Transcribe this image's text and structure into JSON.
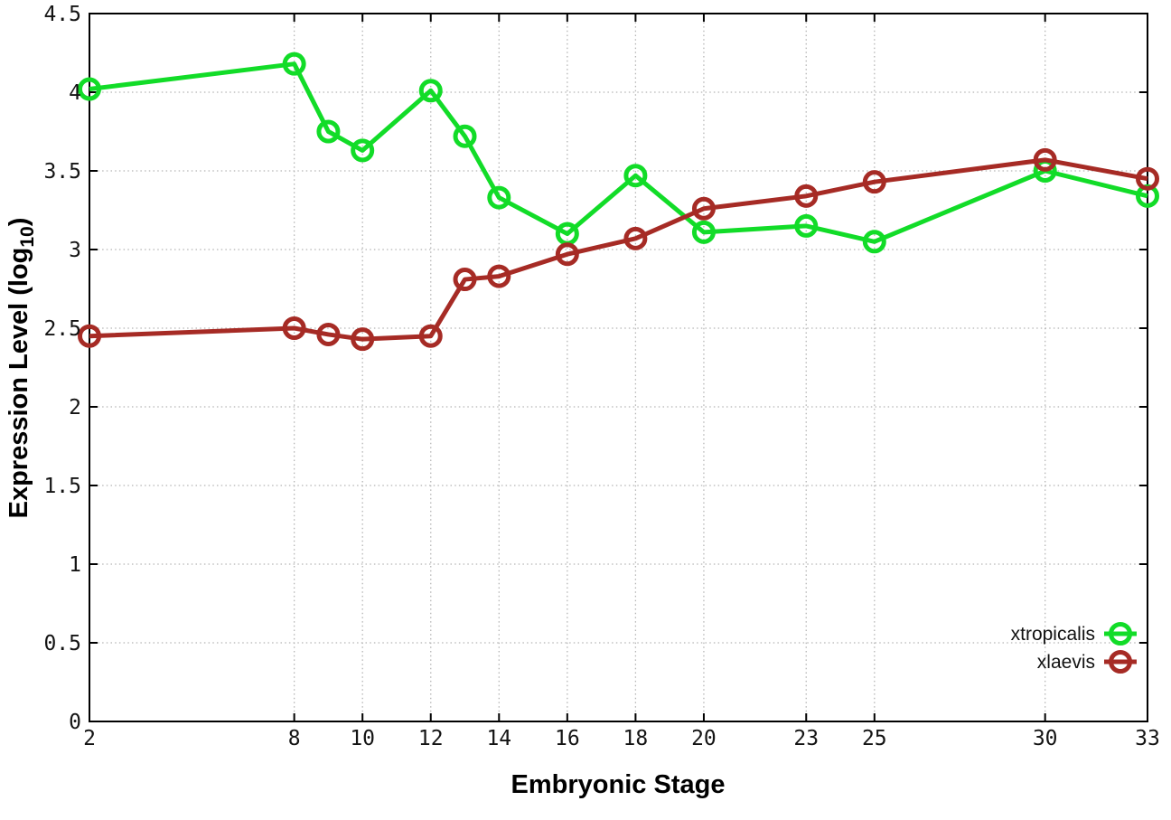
{
  "figure": {
    "background_color": "#ffffff",
    "axis_color": "#000000",
    "grid_color": "#b5b5b5"
  },
  "chart_data": {
    "type": "line",
    "title": "",
    "xlabel": "Embryonic Stage",
    "ylabel": "Expression Level (log10)",
    "ylabel_prefix": "Expression Level (log",
    "ylabel_sub": "10",
    "ylabel_suffix": ")",
    "xlim": [
      2,
      33
    ],
    "ylim": [
      0,
      4.5
    ],
    "x_tick_labels": [
      2,
      8,
      10,
      12,
      14,
      16,
      18,
      20,
      23,
      25,
      30,
      33
    ],
    "y_ticks": [
      0,
      0.5,
      1,
      1.5,
      2,
      2.5,
      3,
      3.5,
      4,
      4.5
    ],
    "grid": true,
    "legend_position": "bottom-right",
    "marker": "open-circle",
    "x": [
      2,
      8,
      9,
      10,
      12,
      13,
      14,
      16,
      18,
      20,
      23,
      25,
      30,
      33
    ],
    "series": [
      {
        "name": "xtropicalis",
        "color": "#12dc28",
        "values": [
          4.02,
          4.18,
          3.75,
          3.63,
          4.01,
          3.72,
          3.33,
          3.1,
          3.47,
          3.11,
          3.15,
          3.05,
          3.5,
          3.34
        ]
      },
      {
        "name": "xlaevis",
        "color": "#a62b25",
        "values": [
          2.45,
          2.5,
          2.46,
          2.43,
          2.45,
          2.81,
          2.83,
          2.97,
          3.07,
          3.26,
          3.34,
          3.43,
          3.57,
          3.45
        ]
      }
    ]
  }
}
